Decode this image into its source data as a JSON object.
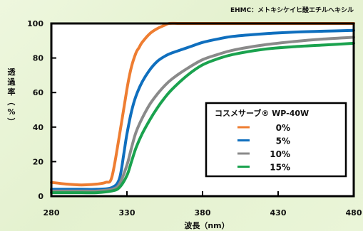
{
  "note": "EHMC：メトキシケイヒ酸エチルヘキシル",
  "colors": {
    "frame": "#000000",
    "c0": "#ee7d31",
    "c5": "#0f6fbe",
    "c10": "#8a8a8a",
    "c15": "#1aa24e",
    "legend_bg": "#ffffff"
  },
  "chart_data": {
    "type": "line",
    "xlabel": "波長（nm）",
    "ylabel": "透過率（%）",
    "xlim": [
      280,
      480
    ],
    "ylim": [
      0,
      100
    ],
    "xticks": [
      280,
      330,
      380,
      430,
      480
    ],
    "yticks": [
      0,
      20,
      40,
      60,
      80,
      100
    ],
    "legend": {
      "title": "コスメサーブ® WP-40W",
      "position": "center-right"
    },
    "series": [
      {
        "name": "0%",
        "color": "#ee7d31",
        "x": [
          280,
          290,
          300,
          310,
          316,
          320,
          325,
          330,
          333,
          336,
          338,
          340,
          345,
          350,
          355,
          358,
          365,
          380,
          400,
          430,
          480
        ],
        "y": [
          8,
          7,
          6.5,
          7,
          8,
          11,
          35,
          62,
          75,
          83,
          86,
          89,
          94,
          97,
          99,
          100,
          100,
          100,
          100,
          100,
          100
        ]
      },
      {
        "name": "5%",
        "color": "#0f6fbe",
        "x": [
          280,
          290,
          300,
          310,
          320,
          325,
          328,
          330,
          333,
          336,
          340,
          345,
          350,
          355,
          360,
          370,
          380,
          390,
          400,
          420,
          440,
          460,
          480
        ],
        "y": [
          4,
          4,
          4,
          4,
          5,
          10,
          25,
          36,
          49,
          58,
          66,
          73,
          78,
          81,
          83,
          86,
          89,
          91,
          92.5,
          94,
          95,
          95.5,
          96
        ]
      },
      {
        "name": "10%",
        "color": "#8a8a8a",
        "x": [
          280,
          290,
          300,
          310,
          320,
          325,
          330,
          333,
          336,
          340,
          345,
          350,
          355,
          360,
          370,
          380,
          390,
          400,
          420,
          440,
          460,
          480
        ],
        "y": [
          3,
          3,
          3,
          3,
          4,
          7,
          18,
          28,
          37,
          45,
          53,
          59,
          64,
          68,
          74,
          79,
          82,
          84.5,
          87.5,
          89.5,
          91,
          92
        ]
      },
      {
        "name": "15%",
        "color": "#1aa24e",
        "x": [
          280,
          290,
          300,
          310,
          320,
          325,
          330,
          333,
          336,
          340,
          345,
          350,
          355,
          360,
          370,
          380,
          390,
          400,
          420,
          440,
          460,
          480
        ],
        "y": [
          2,
          2,
          2,
          2,
          3,
          5,
          12,
          20,
          28,
          36,
          44,
          51,
          57,
          62,
          70,
          76,
          79.5,
          82,
          85,
          86.5,
          87.5,
          88.5
        ]
      }
    ]
  }
}
